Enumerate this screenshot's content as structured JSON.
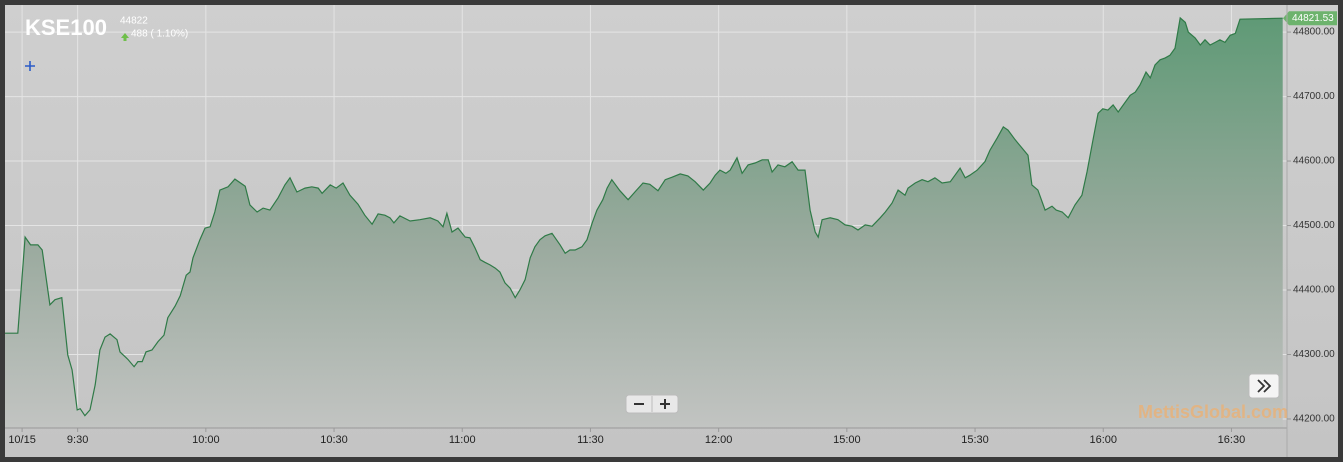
{
  "chart_data": {
    "type": "area",
    "title": "KSE100",
    "last_value": 44822,
    "change": "488 ( 1.10%)",
    "watermark": "MettisGlobal.com",
    "color": "#2f7a47",
    "grid": true,
    "xlim": [
      -2,
      298
    ],
    "ylim": [
      44186,
      44842
    ],
    "xticks": [
      {
        "value": 2,
        "label": "10/15"
      },
      {
        "value": 15,
        "label": "9:30"
      },
      {
        "value": 45,
        "label": "10:00"
      },
      {
        "value": 75,
        "label": "10:30"
      },
      {
        "value": 105,
        "label": "11:00"
      },
      {
        "value": 135,
        "label": "11:30"
      },
      {
        "value": 165,
        "label": "12:00"
      },
      {
        "value": 195,
        "label": "15:00"
      },
      {
        "value": 225,
        "label": "15:30"
      },
      {
        "value": 255,
        "label": "16:00"
      },
      {
        "value": 285,
        "label": "16:30"
      }
    ],
    "yticks": [
      {
        "value": 44200,
        "label": "44200.00"
      },
      {
        "value": 44300,
        "label": "44300.00"
      },
      {
        "value": 44400,
        "label": "44400.00"
      },
      {
        "value": 44500,
        "label": "44500.00"
      },
      {
        "value": 44600,
        "label": "44600.00"
      },
      {
        "value": 44700,
        "label": "44700.00"
      },
      {
        "value": 44800,
        "label": "44800.00"
      }
    ],
    "x": [
      -2,
      1,
      2.7,
      4,
      5.7,
      6.7,
      8.5,
      9.7,
      11.3,
      12.7,
      13.7,
      14.9,
      15.6,
      16.7,
      17.9,
      19.1,
      20.2,
      21.4,
      22.6,
      24.2,
      24.9,
      26.8,
      28.2,
      29.1,
      30.1,
      31,
      32.4,
      33.8,
      35.2,
      36.1,
      37.8,
      39,
      40.4,
      41.3,
      42,
      43.6,
      44.8,
      46,
      47.1,
      48.3,
      50.2,
      51.8,
      54.2,
      55.3,
      57,
      58.4,
      60,
      61.9,
      63.5,
      64.7,
      66.3,
      68.2,
      69.8,
      71.3,
      72.2,
      74.1,
      75.5,
      77.1,
      78.7,
      80.6,
      82.2,
      83.9,
      85.3,
      86.9,
      88.1,
      89,
      90.4,
      92.8,
      95.1,
      97.5,
      99.3,
      100.5,
      101.4,
      102.6,
      104,
      105.7,
      106.8,
      108,
      109.2,
      110.3,
      111.5,
      112.7,
      113.8,
      115,
      116.2,
      117.4,
      118.5,
      119.7,
      120.9,
      122,
      123.2,
      124.4,
      126,
      127.9,
      129.1,
      130.2,
      131.4,
      133,
      134.2,
      135.4,
      136.5,
      137.9,
      138.9,
      140,
      141.9,
      143.8,
      145.4,
      147.3,
      148.9,
      150.8,
      152.5,
      154.1,
      156,
      157.8,
      159.5,
      161.4,
      163,
      164.2,
      165.3,
      166.7,
      167.7,
      169.3,
      170.5,
      171.9,
      173.5,
      175.2,
      176.6,
      177.5,
      178.9,
      180.5,
      182.2,
      183.6,
      185.2,
      186.4,
      187.6,
      188.3,
      189.2,
      191.1,
      192.9,
      194.6,
      196.2,
      197.6,
      199.3,
      200.9,
      202.8,
      204,
      205.6,
      207,
      208.6,
      209.3,
      211,
      212.6,
      214,
      215.6,
      217.3,
      219.2,
      220.3,
      221.5,
      222.7,
      223.8,
      225.5,
      227.3,
      228.5,
      230.2,
      231.6,
      232.7,
      234.4,
      236,
      237.4,
      238.3,
      239.7,
      241.4,
      243,
      244,
      245.4,
      246.8,
      248.4,
      250,
      251.2,
      252.6,
      253.8,
      254.9,
      256.1,
      257.3,
      258.5,
      259.7,
      261.3,
      262.5,
      263.6,
      265,
      266,
      267.1,
      268.3,
      269.5,
      270.6,
      271.8,
      273,
      274.2,
      274.9,
      276.5,
      277.7,
      278.8,
      280,
      281.2,
      282.3,
      283.5,
      284.7,
      285.9,
      287,
      297
    ],
    "values": [
      44333,
      44333,
      44482,
      44470,
      44470,
      44462,
      44377,
      44385,
      44388,
      44299,
      44276,
      44214,
      44216,
      44205,
      44214,
      44253,
      44307,
      44327,
      44332,
      44323,
      44304,
      44292,
      44281,
      44289,
      44289,
      44304,
      44307,
      44320,
      44330,
      44357,
      44375,
      44391,
      44423,
      44428,
      44450,
      44478,
      44496,
      44498,
      44521,
      44555,
      44560,
      44572,
      44561,
      44532,
      44521,
      44527,
      44524,
      44543,
      44563,
      44574,
      44552,
      44558,
      44560,
      44558,
      44550,
      44563,
      44558,
      44566,
      44547,
      44533,
      44516,
      44502,
      44518,
      44516,
      44512,
      44504,
      44515,
      44507,
      44509,
      44512,
      44507,
      44498,
      44519,
      44490,
      44496,
      44482,
      44481,
      44465,
      44447,
      44443,
      44439,
      44434,
      44428,
      44411,
      44403,
      44388,
      44400,
      44416,
      44450,
      44467,
      44478,
      44484,
      44488,
      44470,
      44457,
      44462,
      44462,
      44467,
      44478,
      44504,
      44524,
      44540,
      44558,
      44571,
      44554,
      44540,
      44552,
      44566,
      44564,
      44554,
      44571,
      44575,
      44580,
      44577,
      44568,
      44555,
      44566,
      44578,
      44586,
      44581,
      44586,
      44605,
      44581,
      44594,
      44597,
      44602,
      44602,
      44583,
      44594,
      44591,
      44599,
      44586,
      44586,
      44524,
      44490,
      44482,
      44509,
      44512,
      44509,
      44501,
      44499,
      44493,
      44501,
      44499,
      44512,
      44521,
      44535,
      44555,
      44547,
      44558,
      44566,
      44571,
      44568,
      44574,
      44566,
      44568,
      44578,
      44589,
      44574,
      44578,
      44586,
      44599,
      44617,
      44636,
      44653,
      44648,
      44633,
      44620,
      44609,
      44563,
      44555,
      44524,
      44530,
      44524,
      44521,
      44512,
      44532,
      44547,
      44583,
      44633,
      44674,
      44681,
      44679,
      44687,
      44676,
      44687,
      44702,
      44707,
      44718,
      44738,
      44729,
      44749,
      44757,
      44760,
      44764,
      44775,
      44822,
      44815,
      44800,
      44791,
      44780,
      44788,
      44780,
      44784,
      44788,
      44784,
      44795,
      44798,
      44820,
      44821.53
    ]
  }
}
